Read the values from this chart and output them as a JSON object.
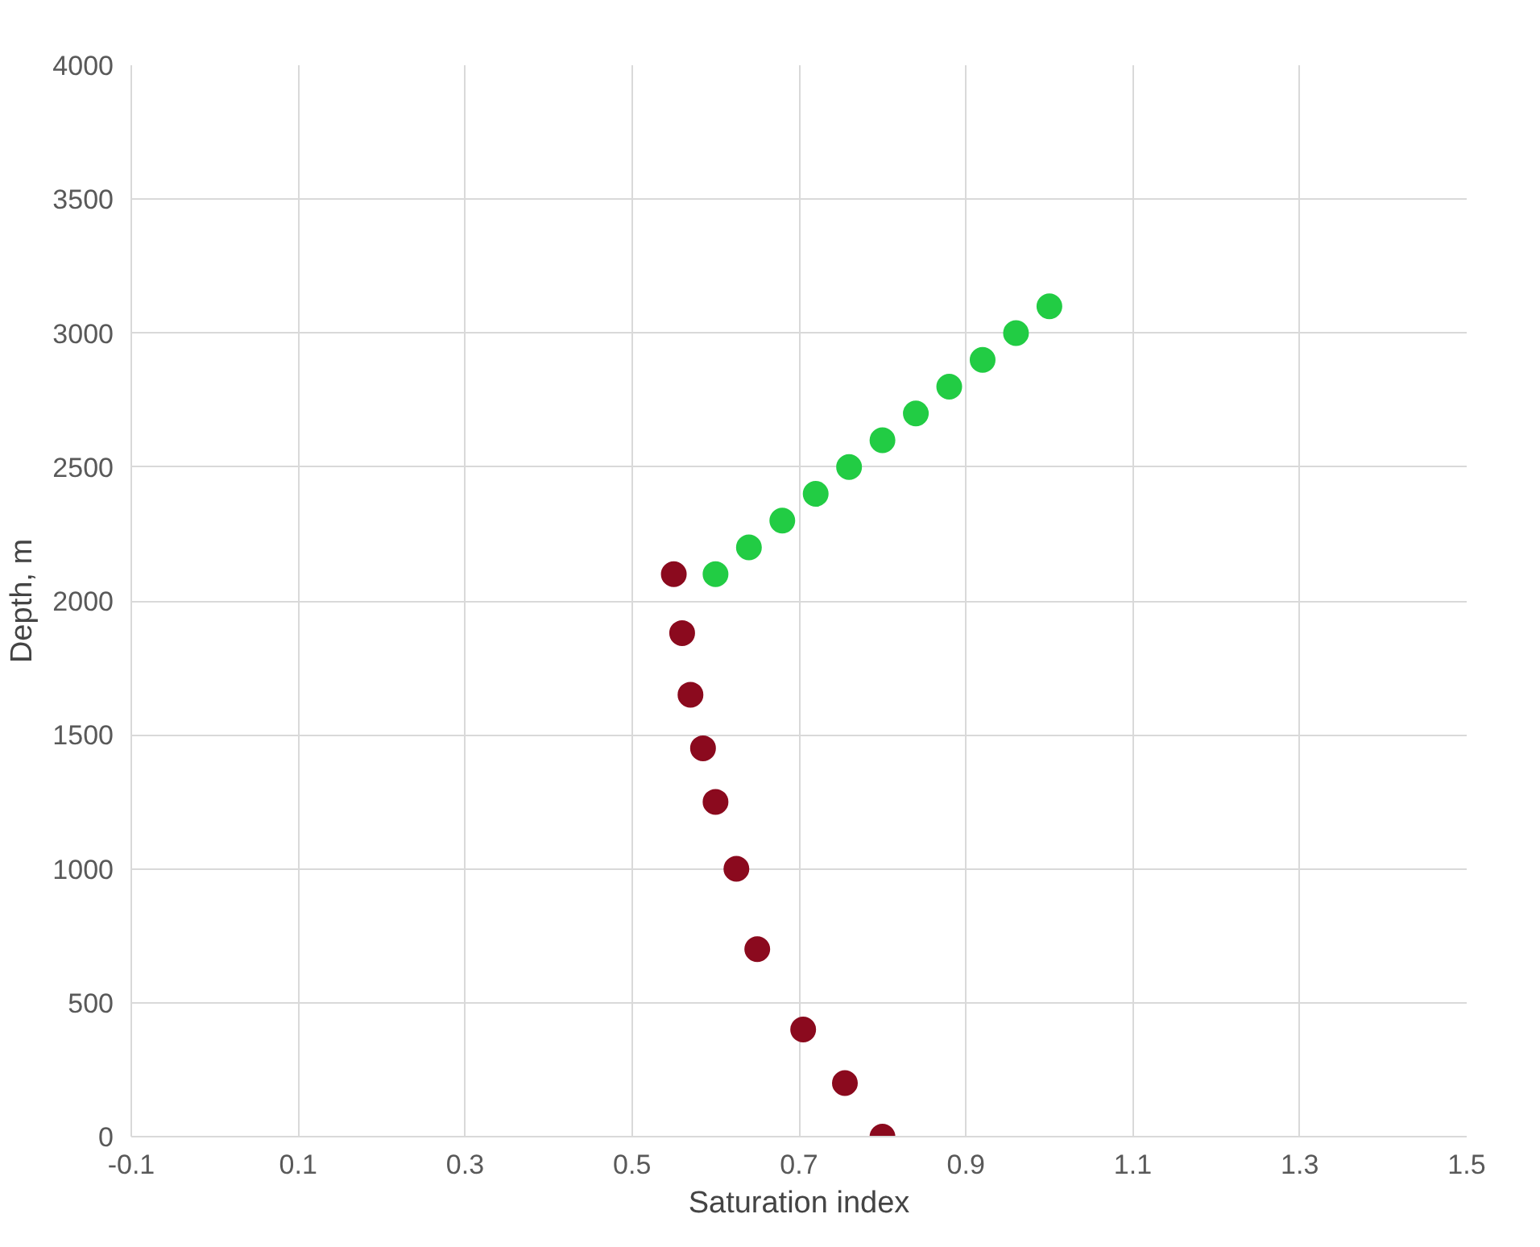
{
  "chart_data": {
    "type": "scatter",
    "xlabel": "Saturation index",
    "ylabel": "Depth, m",
    "xlim": [
      -0.1,
      1.5
    ],
    "xticks": [
      -0.1,
      0.1,
      0.3,
      0.5,
      0.7,
      0.9,
      1.1,
      1.3,
      1.5
    ],
    "ylim": [
      0,
      4000
    ],
    "yticks": [
      0,
      500,
      1000,
      1500,
      2000,
      2500,
      3000,
      3500,
      4000
    ],
    "grid": true,
    "marker": "circle",
    "series": [
      {
        "color": "#8b0a1e",
        "x": [
          0.55,
          0.56,
          0.57,
          0.585,
          0.6,
          0.625,
          0.65,
          0.705,
          0.755,
          0.8
        ],
        "values": [
          2100,
          1880,
          1650,
          1450,
          1250,
          1000,
          700,
          400,
          200,
          0
        ]
      },
      {
        "color": "#22cc44",
        "x": [
          0.6,
          0.64,
          0.68,
          0.72,
          0.76,
          0.8,
          0.84,
          0.88,
          0.92,
          0.96,
          1.0
        ],
        "values": [
          2100,
          2200,
          2300,
          2400,
          2500,
          2600,
          2700,
          2800,
          2900,
          3000,
          3100
        ]
      }
    ]
  }
}
